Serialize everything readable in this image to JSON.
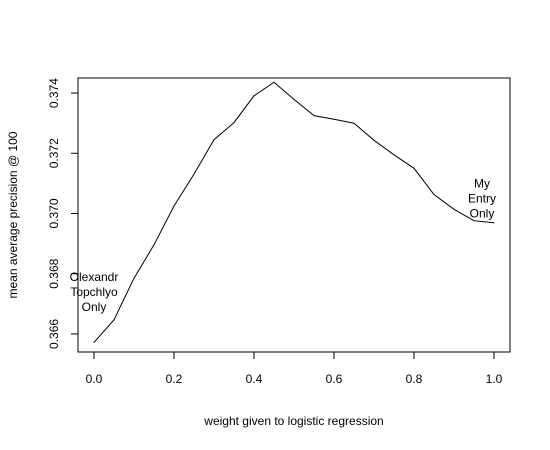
{
  "chart_data": {
    "type": "line",
    "title": "",
    "xlabel": "weight given to logistic regression",
    "ylabel": "mean average precision @ 100",
    "xlim": [
      -0.04,
      1.04
    ],
    "ylim": [
      0.3654,
      0.3745
    ],
    "xticks": [
      0.0,
      0.2,
      0.4,
      0.6,
      0.8,
      1.0
    ],
    "xtick_labels": [
      "0.0",
      "0.2",
      "0.4",
      "0.6",
      "0.8",
      "1.0"
    ],
    "yticks": [
      0.366,
      0.368,
      0.37,
      0.372,
      0.374
    ],
    "ytick_labels": [
      "0.366",
      "0.368",
      "0.370",
      "0.372",
      "0.374"
    ],
    "series": [
      {
        "x": [
          0.0,
          0.05,
          0.1,
          0.15,
          0.2,
          0.25,
          0.3,
          0.35,
          0.4,
          0.45,
          0.5,
          0.55,
          0.6,
          0.65,
          0.7,
          0.75,
          0.8,
          0.85,
          0.9,
          0.95,
          1.0
        ],
        "y": [
          0.36572,
          0.36647,
          0.36785,
          0.36896,
          0.37025,
          0.37131,
          0.37245,
          0.37302,
          0.37391,
          0.37436,
          0.37379,
          0.37325,
          0.37313,
          0.373,
          0.37243,
          0.37195,
          0.3715,
          0.37063,
          0.37014,
          0.36976,
          0.36969
        ]
      }
    ],
    "annotations": [
      {
        "lines": [
          "Olexandr",
          "Topchlyo",
          "Only"
        ],
        "x": 0.0,
        "y": 0.3674
      },
      {
        "lines": [
          "My",
          "Entry",
          "Only"
        ],
        "x": 0.97,
        "y": 0.3705
      }
    ],
    "grid": false,
    "colors": {
      "line": "#000000",
      "box": "#000000"
    }
  }
}
